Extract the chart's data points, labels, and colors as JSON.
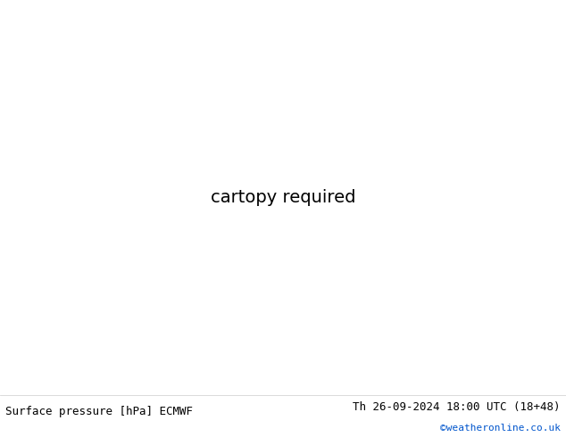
{
  "title_left": "Surface pressure [hPa] ECMWF",
  "title_right": "Th 26-09-2024 18:00 UTC (18+48)",
  "copyright": "©weatheronline.co.uk",
  "land_color": "#b5d6a7",
  "ocean_color": "#d8d8d8",
  "border_color": "#888888",
  "fig_width": 6.34,
  "fig_height": 4.9,
  "dpi": 100,
  "font_size_title": 9,
  "font_size_copyright": 8,
  "black_color": "#000000",
  "blue_color": "#0055cc",
  "red_color": "#cc0000",
  "lonmin": -25,
  "lonmax": 65,
  "latmin": -42,
  "latmax": 40
}
